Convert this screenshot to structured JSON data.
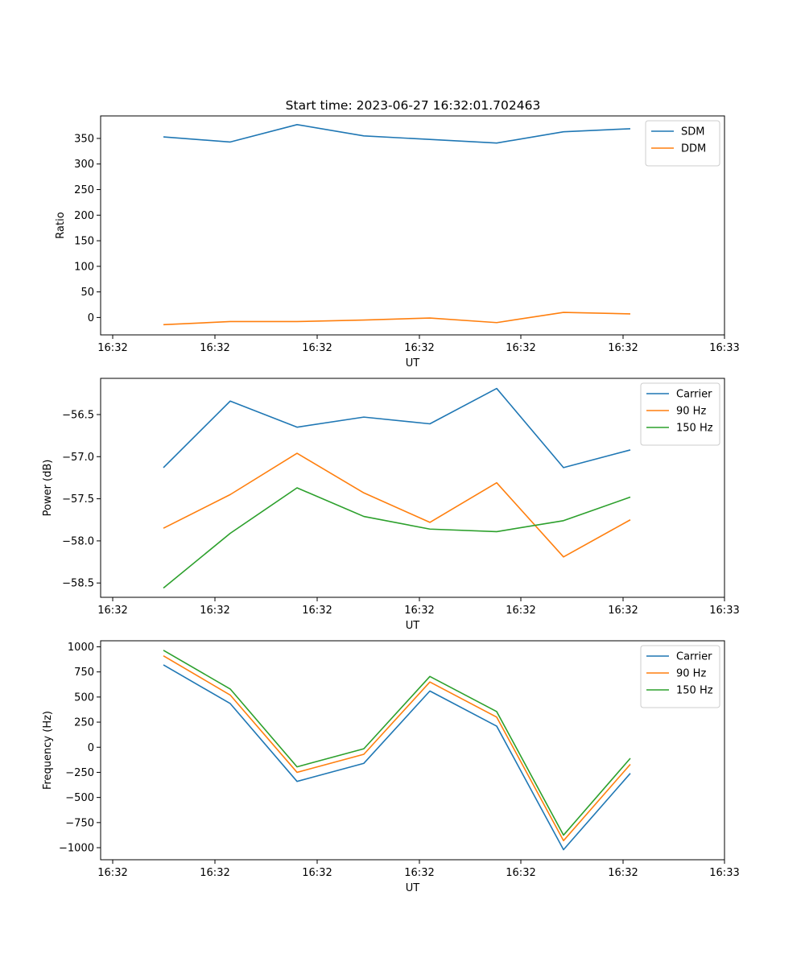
{
  "title": "Start time: 2023-06-27 16:32:01.702463",
  "colors": {
    "blue": "#1f77b4",
    "orange": "#ff7f0e",
    "green": "#2ca02c"
  },
  "chart_data": [
    {
      "type": "line",
      "xlabel": "UT",
      "ylabel": "Ratio",
      "ylim": [
        -34,
        394
      ],
      "yticks": [
        0,
        50,
        100,
        150,
        200,
        250,
        300,
        350
      ],
      "xticks": [
        "16:32",
        "16:32",
        "16:32",
        "16:32",
        "16:32",
        "16:32",
        "16:32"
      ],
      "xtick_last": "16:33",
      "legend": "top-right",
      "series": [
        {
          "name": "SDM",
          "color": "#1f77b4",
          "values": [
            353,
            343,
            377,
            355,
            348,
            341,
            363,
            369
          ]
        },
        {
          "name": "DDM",
          "color": "#ff7f0e",
          "values": [
            -14,
            -8,
            -8,
            -5,
            -1,
            -10,
            10,
            7
          ]
        }
      ]
    },
    {
      "type": "line",
      "xlabel": "UT",
      "ylabel": "Power (dB)",
      "ylim": [
        -58.67,
        -56.07
      ],
      "yticks": [
        -58.5,
        -58.0,
        -57.5,
        -57.0,
        -56.5
      ],
      "ytick_labels": [
        "−58.5",
        "−58.0",
        "−57.5",
        "−57.0",
        "−56.5"
      ],
      "xticks": [
        "16:32",
        "16:32",
        "16:32",
        "16:32",
        "16:32",
        "16:32",
        "16:32"
      ],
      "xtick_last": "16:33",
      "legend": "top-right",
      "series": [
        {
          "name": "Carrier",
          "color": "#1f77b4",
          "values": [
            -57.13,
            -56.34,
            -56.65,
            -56.53,
            -56.61,
            -56.19,
            -57.13,
            -56.92
          ]
        },
        {
          "name": "90 Hz",
          "color": "#ff7f0e",
          "values": [
            -57.85,
            -57.45,
            -56.96,
            -57.43,
            -57.78,
            -57.31,
            -58.19,
            -57.75
          ]
        },
        {
          "name": "150 Hz",
          "color": "#2ca02c",
          "values": [
            -58.56,
            -57.91,
            -57.37,
            -57.71,
            -57.86,
            -57.89,
            -57.76,
            -57.48
          ]
        }
      ]
    },
    {
      "type": "line",
      "xlabel": "UT",
      "ylabel": "Frequency (Hz)",
      "ylim": [
        -1120,
        1060
      ],
      "yticks": [
        -1000,
        -750,
        -500,
        -250,
        0,
        250,
        500,
        750,
        1000
      ],
      "ytick_labels": [
        "−1000",
        "−750",
        "−500",
        "−250",
        "0",
        "250",
        "500",
        "750",
        "1000"
      ],
      "xticks": [
        "16:32",
        "16:32",
        "16:32",
        "16:32",
        "16:32",
        "16:32",
        "16:32"
      ],
      "xtick_last": "16:33",
      "legend": "top-right",
      "series": [
        {
          "name": "Carrier",
          "color": "#1f77b4",
          "values": [
            820,
            435,
            -340,
            -160,
            560,
            210,
            -1020,
            -260
          ]
        },
        {
          "name": "90 Hz",
          "color": "#ff7f0e",
          "values": [
            910,
            520,
            -250,
            -70,
            650,
            300,
            -930,
            -170
          ]
        },
        {
          "name": "150 Hz",
          "color": "#2ca02c",
          "values": [
            965,
            580,
            -195,
            -15,
            705,
            355,
            -875,
            -110
          ]
        }
      ]
    }
  ]
}
